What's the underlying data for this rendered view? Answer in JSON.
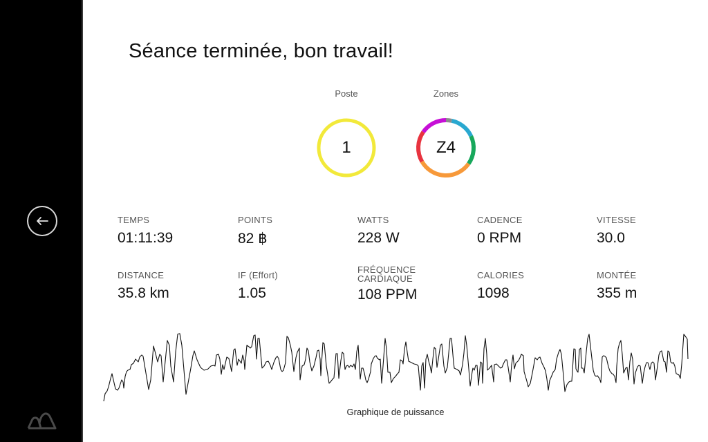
{
  "sidebar": {
    "back_button_icon": "arrow-left-icon",
    "logo_icon": "mountain-logo-icon"
  },
  "header": {
    "title": "Séance terminée, bon travail!"
  },
  "rings": {
    "poste": {
      "label": "Poste",
      "value": "1",
      "color": "#f2e93a"
    },
    "zones": {
      "label": "Zones",
      "value": "Z4",
      "segments": [
        {
          "zone": "gray",
          "color": "#8c8c8c",
          "from_deg": 0,
          "to_deg": 12
        },
        {
          "zone": "blue",
          "color": "#29a8d0",
          "from_deg": 12,
          "to_deg": 65
        },
        {
          "zone": "green",
          "color": "#18a85c",
          "from_deg": 65,
          "to_deg": 125
        },
        {
          "zone": "orange",
          "color": "#f7993a",
          "from_deg": 125,
          "to_deg": 240
        },
        {
          "zone": "red",
          "color": "#e8333f",
          "from_deg": 240,
          "to_deg": 305
        },
        {
          "zone": "magenta",
          "color": "#c60fd6",
          "from_deg": 305,
          "to_deg": 360
        }
      ]
    }
  },
  "stats": [
    {
      "label": "TEMPS",
      "value": "01:11:39"
    },
    {
      "label": "POINTS",
      "value": "82 ฿"
    },
    {
      "label": "WATTS",
      "value": "228 W"
    },
    {
      "label": "CADENCE",
      "value": "0 RPM"
    },
    {
      "label": "VITESSE",
      "value": "30.0"
    },
    {
      "label": "DISTANCE",
      "value": "35.8 km"
    },
    {
      "label": "IF (Effort)",
      "value": "1.05"
    },
    {
      "label": "FRÉQUENCE CARDIAQUE",
      "value": "108 PPM"
    },
    {
      "label": "CALORIES",
      "value": "1098"
    },
    {
      "label": "MONTÉE",
      "value": "355 m"
    }
  ],
  "chart": {
    "caption": "Graphique de puissance"
  },
  "chart_data": {
    "type": "line",
    "title": "Graphique de puissance",
    "xlabel": "",
    "ylabel": "",
    "grid": false,
    "legend": "none",
    "note": "Unlabeled power trace; points are screen-space (x px, y px) readings of the polyline",
    "points": [
      [
        150,
        581
      ],
      [
        152,
        570
      ],
      [
        155,
        566
      ],
      [
        157,
        560
      ],
      [
        160,
        548
      ],
      [
        162,
        541
      ],
      [
        164,
        550
      ],
      [
        167,
        563
      ],
      [
        170,
        565
      ],
      [
        172,
        562
      ],
      [
        174,
        556
      ],
      [
        176,
        550
      ],
      [
        178,
        553
      ],
      [
        179,
        562
      ],
      [
        181,
        545
      ],
      [
        183,
        538
      ],
      [
        185,
        536
      ],
      [
        188,
        535
      ],
      [
        190,
        528
      ],
      [
        193,
        526
      ],
      [
        196,
        520
      ],
      [
        198,
        522
      ],
      [
        200,
        524
      ],
      [
        202,
        517
      ],
      [
        205,
        514
      ],
      [
        207,
        516
      ],
      [
        215,
        564
      ],
      [
        218,
        550
      ],
      [
        222,
        501
      ],
      [
        225,
        512
      ],
      [
        228,
        524
      ],
      [
        231,
        513
      ],
      [
        233,
        515
      ],
      [
        236,
        553
      ],
      [
        242,
        493
      ],
      [
        245,
        500
      ],
      [
        247,
        530
      ],
      [
        251,
        553
      ],
      [
        254,
        510
      ],
      [
        257,
        484
      ],
      [
        260,
        483
      ],
      [
        263,
        500
      ],
      [
        269,
        571
      ],
      [
        276,
        533
      ],
      [
        279,
        515
      ],
      [
        281,
        508
      ],
      [
        285,
        521
      ],
      [
        290,
        532
      ],
      [
        295,
        536
      ],
      [
        300,
        535
      ],
      [
        305,
        530
      ],
      [
        309,
        529
      ],
      [
        311,
        530
      ],
      [
        313,
        514
      ],
      [
        316,
        513
      ],
      [
        318,
        520
      ],
      [
        320,
        542
      ],
      [
        322,
        528
      ],
      [
        324,
        535
      ],
      [
        328,
        517
      ],
      [
        331,
        519
      ],
      [
        335,
        538
      ],
      [
        338,
        507
      ],
      [
        340,
        505
      ],
      [
        343,
        529
      ],
      [
        345,
        520
      ],
      [
        347,
        523
      ],
      [
        349,
        526
      ],
      [
        351,
        514
      ],
      [
        353,
        522
      ],
      [
        354,
        535
      ],
      [
        357,
        500
      ],
      [
        360,
        502
      ],
      [
        362,
        504
      ],
      [
        364,
        502
      ],
      [
        367,
        486
      ],
      [
        369,
        485
      ],
      [
        371,
        520
      ],
      [
        373,
        490
      ],
      [
        375,
        490
      ],
      [
        379,
        533
      ],
      [
        382,
        530
      ],
      [
        385,
        524
      ],
      [
        388,
        523
      ],
      [
        391,
        529
      ],
      [
        393,
        535
      ],
      [
        396,
        525
      ],
      [
        399,
        518
      ],
      [
        401,
        516
      ],
      [
        403,
        519
      ],
      [
        406,
        535
      ],
      [
        408,
        538
      ],
      [
        410,
        536
      ],
      [
        413,
        525
      ],
      [
        415,
        487
      ],
      [
        417,
        489
      ],
      [
        420,
        500
      ],
      [
        422,
        510
      ],
      [
        425,
        538
      ],
      [
        428,
        518
      ],
      [
        430,
        510
      ],
      [
        433,
        504
      ],
      [
        434,
        550
      ],
      [
        437,
        530
      ],
      [
        440,
        528
      ],
      [
        442,
        520
      ],
      [
        444,
        504
      ],
      [
        446,
        508
      ],
      [
        448,
        524
      ],
      [
        451,
        537
      ],
      [
        454,
        530
      ],
      [
        457,
        518
      ],
      [
        459,
        508
      ],
      [
        461,
        507
      ],
      [
        463,
        520
      ],
      [
        464,
        544
      ],
      [
        467,
        496
      ],
      [
        469,
        498
      ],
      [
        472,
        530
      ],
      [
        476,
        555
      ],
      [
        478,
        553
      ],
      [
        481,
        549
      ],
      [
        483,
        547
      ],
      [
        486,
        512
      ],
      [
        488,
        512
      ],
      [
        490,
        548
      ],
      [
        493,
        522
      ],
      [
        495,
        510
      ],
      [
        497,
        512
      ],
      [
        499,
        535
      ],
      [
        501,
        530
      ],
      [
        503,
        529
      ],
      [
        505,
        532
      ],
      [
        507,
        529
      ],
      [
        510,
        531
      ],
      [
        512,
        527
      ],
      [
        514,
        535
      ],
      [
        516,
        509
      ],
      [
        518,
        500
      ],
      [
        521,
        549
      ],
      [
        523,
        533
      ],
      [
        525,
        533
      ],
      [
        527,
        540
      ],
      [
        529,
        550
      ],
      [
        531,
        554
      ],
      [
        533,
        549
      ],
      [
        536,
        538
      ],
      [
        537,
        527
      ],
      [
        540,
        519
      ],
      [
        542,
        516
      ],
      [
        544,
        515
      ],
      [
        546,
        519
      ],
      [
        549,
        521
      ],
      [
        550,
        520
      ],
      [
        552,
        555
      ],
      [
        554,
        530
      ],
      [
        557,
        490
      ],
      [
        559,
        505
      ],
      [
        561,
        539
      ],
      [
        564,
        539
      ],
      [
        566,
        554
      ],
      [
        569,
        548
      ],
      [
        572,
        545
      ],
      [
        575,
        541
      ],
      [
        577,
        539
      ],
      [
        579,
        521
      ],
      [
        582,
        523
      ],
      [
        583,
        527
      ],
      [
        585,
        506
      ],
      [
        587,
        495
      ],
      [
        589,
        510
      ],
      [
        591,
        523
      ],
      [
        595,
        525
      ],
      [
        599,
        527
      ],
      [
        603,
        528
      ],
      [
        605,
        530
      ],
      [
        608,
        565
      ],
      [
        610,
        530
      ],
      [
        612,
        525
      ],
      [
        614,
        562
      ],
      [
        616,
        520
      ],
      [
        618,
        513
      ],
      [
        620,
        523
      ],
      [
        622,
        530
      ],
      [
        624,
        540
      ],
      [
        626,
        520
      ],
      [
        628,
        503
      ],
      [
        630,
        505
      ],
      [
        632,
        532
      ],
      [
        634,
        520
      ],
      [
        637,
        500
      ],
      [
        639,
        498
      ],
      [
        642,
        530
      ],
      [
        644,
        540
      ],
      [
        647,
        532
      ],
      [
        649,
        511
      ],
      [
        651,
        490
      ],
      [
        653,
        490
      ],
      [
        656,
        525
      ],
      [
        657,
        533
      ],
      [
        659,
        534
      ],
      [
        661,
        535
      ],
      [
        664,
        537
      ],
      [
        666,
        543
      ],
      [
        669,
        528
      ],
      [
        671,
        511
      ],
      [
        673,
        486
      ],
      [
        675,
        500
      ],
      [
        678,
        534
      ],
      [
        680,
        559
      ],
      [
        683,
        538
      ],
      [
        684,
        533
      ],
      [
        686,
        536
      ],
      [
        688,
        529
      ],
      [
        690,
        529
      ],
      [
        692,
        558
      ],
      [
        695,
        524
      ],
      [
        697,
        526
      ],
      [
        698,
        555
      ],
      [
        700,
        505
      ],
      [
        702,
        490
      ],
      [
        704,
        513
      ],
      [
        705,
        536
      ],
      [
        708,
        533
      ],
      [
        711,
        529
      ],
      [
        714,
        553
      ],
      [
        715,
        528
      ],
      [
        718,
        527
      ],
      [
        721,
        530
      ],
      [
        724,
        533
      ],
      [
        726,
        532
      ],
      [
        728,
        527
      ],
      [
        731,
        521
      ],
      [
        733,
        521
      ],
      [
        735,
        532
      ],
      [
        736,
        539
      ],
      [
        738,
        553
      ],
      [
        740,
        528
      ],
      [
        742,
        514
      ],
      [
        744,
        534
      ],
      [
        746,
        526
      ],
      [
        748,
        524
      ],
      [
        750,
        522
      ],
      [
        752,
        518
      ],
      [
        754,
        513
      ],
      [
        757,
        515
      ],
      [
        758,
        538
      ],
      [
        760,
        545
      ],
      [
        762,
        552
      ],
      [
        764,
        560
      ],
      [
        767,
        555
      ],
      [
        770,
        540
      ],
      [
        774,
        518
      ],
      [
        777,
        521
      ],
      [
        779,
        518
      ],
      [
        781,
        517
      ],
      [
        784,
        526
      ],
      [
        787,
        532
      ],
      [
        789,
        537
      ],
      [
        791,
        549
      ],
      [
        793,
        565
      ],
      [
        795,
        551
      ],
      [
        798,
        544
      ],
      [
        800,
        539
      ],
      [
        803,
        535
      ],
      [
        805,
        520
      ],
      [
        808,
        510
      ],
      [
        810,
        506
      ],
      [
        812,
        513
      ],
      [
        815,
        545
      ],
      [
        817,
        567
      ],
      [
        820,
        557
      ],
      [
        823,
        553
      ],
      [
        825,
        552
      ],
      [
        827,
        552
      ],
      [
        830,
        505
      ],
      [
        832,
        506
      ],
      [
        833,
        534
      ],
      [
        835,
        538
      ],
      [
        836,
        539
      ],
      [
        838,
        506
      ],
      [
        840,
        504
      ],
      [
        841,
        533
      ],
      [
        843,
        533
      ],
      [
        845,
        540
      ],
      [
        848,
        509
      ],
      [
        850,
        490
      ],
      [
        852,
        484
      ],
      [
        855,
        510
      ],
      [
        858,
        536
      ],
      [
        860,
        543
      ],
      [
        862,
        545
      ],
      [
        864,
        544
      ],
      [
        867,
        548
      ],
      [
        869,
        554
      ],
      [
        871,
        517
      ],
      [
        873,
        515
      ],
      [
        875,
        516
      ],
      [
        877,
        518
      ],
      [
        880,
        531
      ],
      [
        882,
        537
      ],
      [
        885,
        541
      ],
      [
        887,
        542
      ],
      [
        889,
        545
      ],
      [
        891,
        554
      ],
      [
        892,
        530
      ],
      [
        894,
        505
      ],
      [
        896,
        497
      ],
      [
        898,
        493
      ],
      [
        900,
        513
      ],
      [
        902,
        540
      ],
      [
        905,
        533
      ],
      [
        907,
        532
      ],
      [
        909,
        550
      ],
      [
        911,
        524
      ],
      [
        913,
        511
      ],
      [
        915,
        520
      ],
      [
        917,
        556
      ],
      [
        919,
        540
      ],
      [
        922,
        531
      ],
      [
        924,
        529
      ],
      [
        926,
        530
      ],
      [
        929,
        555
      ],
      [
        931,
        540
      ],
      [
        933,
        531
      ],
      [
        935,
        525
      ],
      [
        937,
        525
      ],
      [
        940,
        535
      ],
      [
        942,
        526
      ],
      [
        944,
        524
      ],
      [
        946,
        526
      ],
      [
        948,
        550
      ],
      [
        951,
        530
      ],
      [
        953,
        514
      ],
      [
        955,
        509
      ],
      [
        957,
        508
      ],
      [
        960,
        523
      ],
      [
        962,
        524
      ],
      [
        964,
        539
      ],
      [
        966,
        508
      ],
      [
        968,
        510
      ],
      [
        970,
        524
      ],
      [
        972,
        526
      ],
      [
        974,
        525
      ],
      [
        976,
        530
      ],
      [
        978,
        541
      ],
      [
        980,
        542
      ],
      [
        982,
        543
      ],
      [
        984,
        548
      ],
      [
        986,
        527
      ],
      [
        988,
        498
      ],
      [
        989,
        484
      ],
      [
        992,
        488
      ],
      [
        994,
        491
      ],
      [
        995,
        520
      ]
    ]
  }
}
